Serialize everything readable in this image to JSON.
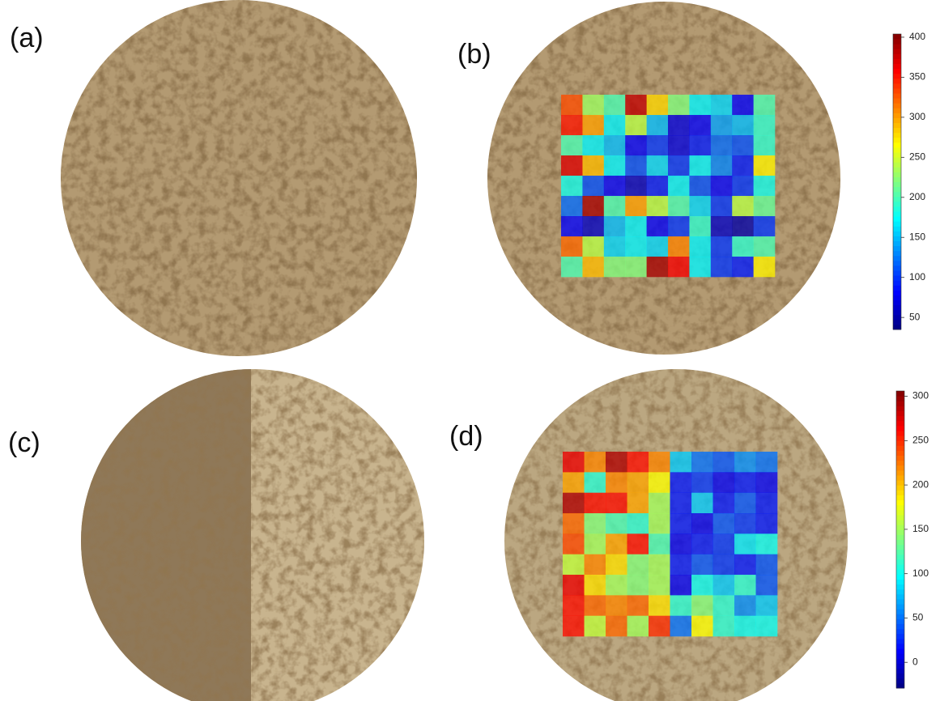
{
  "panels": [
    {
      "label": "(a)"
    },
    {
      "label": "(b)"
    },
    {
      "label": "(c)"
    },
    {
      "label": "(d)"
    }
  ],
  "heatmaps": [
    {
      "values": [
        [
          330,
          230,
          200,
          380,
          280,
          220,
          170,
          160,
          80,
          200
        ],
        [
          350,
          300,
          170,
          240,
          150,
          70,
          80,
          140,
          150,
          190
        ],
        [
          200,
          170,
          150,
          80,
          100,
          70,
          90,
          120,
          110,
          190
        ],
        [
          370,
          290,
          170,
          110,
          160,
          100,
          170,
          130,
          90,
          270
        ],
        [
          180,
          110,
          80,
          60,
          90,
          170,
          110,
          80,
          100,
          180
        ],
        [
          120,
          390,
          200,
          300,
          240,
          200,
          160,
          100,
          240,
          210
        ],
        [
          80,
          60,
          150,
          170,
          80,
          100,
          190,
          60,
          50,
          100
        ],
        [
          320,
          240,
          160,
          170,
          160,
          310,
          170,
          100,
          190,
          200
        ],
        [
          200,
          290,
          220,
          220,
          390,
          360,
          170,
          100,
          90,
          270
        ]
      ],
      "colorbar": {
        "lim": [
          35,
          404
        ],
        "ticks": [
          50,
          100,
          150,
          200,
          250,
          300,
          350,
          400
        ]
      }
    },
    {
      "values": [
        [
          270,
          220,
          290,
          260,
          220,
          80,
          50,
          40,
          60,
          50
        ],
        [
          210,
          110,
          220,
          210,
          180,
          20,
          30,
          10,
          20,
          10
        ],
        [
          290,
          260,
          260,
          210,
          150,
          20,
          80,
          20,
          40,
          20
        ],
        [
          230,
          140,
          120,
          110,
          150,
          20,
          10,
          40,
          30,
          20
        ],
        [
          240,
          150,
          210,
          260,
          120,
          10,
          20,
          30,
          90,
          100
        ],
        [
          160,
          220,
          190,
          140,
          150,
          20,
          40,
          30,
          20,
          40
        ],
        [
          270,
          190,
          150,
          140,
          150,
          10,
          100,
          80,
          110,
          40
        ],
        [
          260,
          230,
          220,
          230,
          190,
          110,
          140,
          110,
          60,
          80
        ],
        [
          260,
          160,
          230,
          150,
          250,
          50,
          180,
          110,
          100,
          100
        ]
      ],
      "colorbar": {
        "lim": [
          -29,
          306
        ],
        "ticks": [
          0,
          50,
          100,
          150,
          200,
          250,
          300
        ]
      }
    }
  ]
}
